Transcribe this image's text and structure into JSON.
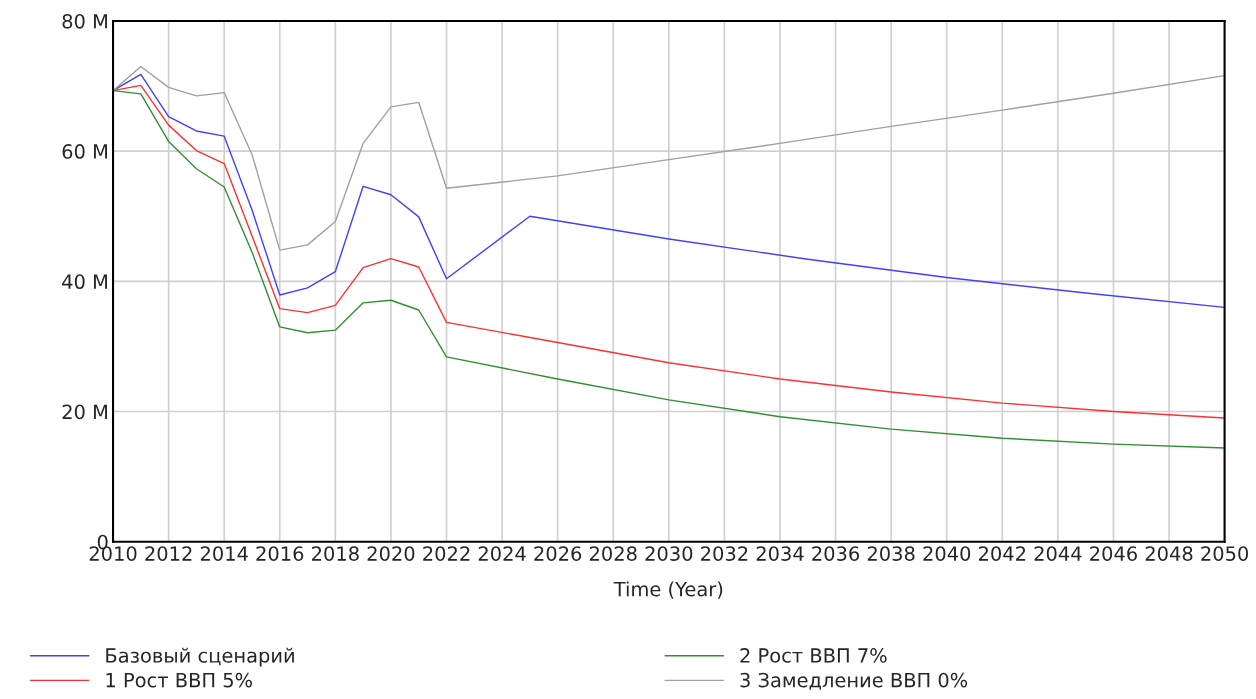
{
  "chart_data": {
    "type": "line",
    "xlabel": "Time (Year)",
    "xlim": [
      2010,
      2050
    ],
    "xticks": [
      2010,
      2012,
      2014,
      2016,
      2018,
      2020,
      2022,
      2024,
      2026,
      2028,
      2030,
      2032,
      2034,
      2036,
      2038,
      2040,
      2042,
      2044,
      2046,
      2048,
      2050
    ],
    "ylim": [
      0,
      80
    ],
    "yticks": [
      0,
      {
        "value": 20,
        "label": "20 M"
      },
      {
        "value": 40,
        "label": "40 M"
      },
      {
        "value": 60,
        "label": "60 M"
      },
      {
        "value": 80,
        "label": "80 M"
      }
    ],
    "grid": true,
    "legend": "bottom",
    "marker": "none",
    "line_style": "solid",
    "series": [
      {
        "name": "Базовый сценарий",
        "color": "#4040ff",
        "x": [
          2010,
          2011,
          2012,
          2013,
          2014,
          2015,
          2016,
          2017,
          2018,
          2019,
          2020,
          2021,
          2022,
          2025,
          2030,
          2035,
          2040,
          2045,
          2050
        ],
        "values": [
          69.3,
          71.8,
          65.3,
          63.1,
          62.3,
          51,
          37.9,
          39,
          41.5,
          54.6,
          53.3,
          49.9,
          40.4,
          50.0,
          46.5,
          43.4,
          40.6,
          38.2,
          36.0
        ]
      },
      {
        "name": "1 Рост ВВП 5%",
        "color": "#ff3030",
        "x": [
          2010,
          2011,
          2012,
          2013,
          2014,
          2015,
          2016,
          2017,
          2018,
          2019,
          2020,
          2021,
          2022,
          2026,
          2030,
          2034,
          2038,
          2042,
          2046,
          2050
        ],
        "values": [
          69.3,
          70.1,
          64,
          60.1,
          58.1,
          47,
          35.8,
          35.2,
          36.3,
          42.1,
          43.5,
          42.2,
          33.7,
          30.6,
          27.5,
          25,
          23,
          21.3,
          20,
          19
        ]
      },
      {
        "name": "2 Рост ВВП 7%",
        "color": "#309030",
        "x": [
          2010,
          2011,
          2012,
          2013,
          2014,
          2015,
          2016,
          2017,
          2018,
          2019,
          2020,
          2021,
          2022,
          2026,
          2030,
          2034,
          2038,
          2042,
          2046,
          2050
        ],
        "values": [
          69.3,
          68.8,
          61.5,
          57.3,
          54.5,
          44.5,
          33,
          32.1,
          32.5,
          36.7,
          37.1,
          35.6,
          28.4,
          25,
          21.8,
          19.2,
          17.3,
          15.9,
          15,
          14.4
        ]
      },
      {
        "name": "3 Замедление ВВП 0%",
        "color": "#a0a0a0",
        "x": [
          2010,
          2011,
          2012,
          2013,
          2014,
          2015,
          2016,
          2017,
          2018,
          2019,
          2020,
          2021,
          2022,
          2026,
          2030,
          2034,
          2038,
          2042,
          2046,
          2050
        ],
        "values": [
          69.3,
          73,
          69.8,
          68.5,
          69,
          59.5,
          44.8,
          45.6,
          49.2,
          61.2,
          66.8,
          67.5,
          54.3,
          56.2,
          58.7,
          61.2,
          63.8,
          66.3,
          68.9,
          71.6
        ]
      }
    ]
  }
}
